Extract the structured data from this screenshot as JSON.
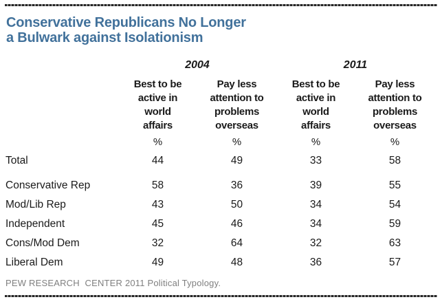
{
  "title": {
    "text": "Conservative Republicans No Longer\na Bulwark against Isolationism"
  },
  "colors": {
    "title_blue": "#41719B",
    "footer_gray": "#7f7f7f",
    "text_black": "#1a1a1a"
  },
  "header": {
    "years": [
      "2004",
      "2011"
    ],
    "columns": [
      "Best to be\nactive in\nworld\naffairs",
      "Pay less\nattention to\nproblems\noverseas",
      "Best to be\nactive in\nworld\naffairs",
      "Pay less\nattention to\nproblems\noverseas"
    ],
    "unit": "%"
  },
  "chart_data": {
    "type": "table",
    "title": "Conservative Republicans No Longer a Bulwark against Isolationism",
    "column_groups": [
      "2004",
      "2011"
    ],
    "columns": [
      "2004 Best to be active in world affairs",
      "2004 Pay less attention to problems overseas",
      "2011 Best to be active in world affairs",
      "2011 Pay less attention to problems overseas"
    ],
    "unit": "%",
    "rows": [
      {
        "label": "Total",
        "values": [
          44,
          49,
          33,
          58
        ]
      },
      {
        "label": "Conservative Rep",
        "values": [
          58,
          36,
          39,
          55
        ]
      },
      {
        "label": "Mod/Lib Rep",
        "values": [
          43,
          50,
          34,
          54
        ]
      },
      {
        "label": "Independent",
        "values": [
          45,
          46,
          34,
          59
        ]
      },
      {
        "label": "Cons/Mod Dem",
        "values": [
          32,
          64,
          32,
          63
        ]
      },
      {
        "label": "Liberal Dem",
        "values": [
          49,
          48,
          36,
          57
        ]
      }
    ]
  },
  "footer": {
    "source": "PEW RESEARCH  CENTER 2011 Political Typology."
  }
}
